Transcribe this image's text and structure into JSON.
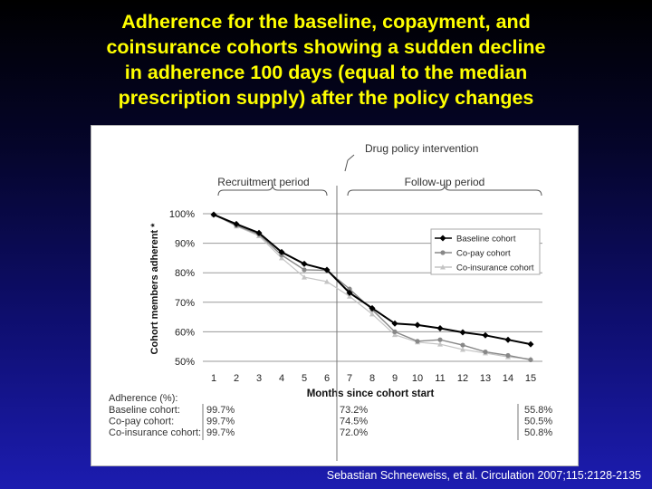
{
  "slide": {
    "title_lines": [
      "Adherence for the baseline, copayment, and",
      "coinsurance cohorts showing a sudden decline",
      "in adherence 100 days (equal to the median",
      "prescription supply) after the policy changes"
    ],
    "citation": "Sebastian Schneeweiss, et al. Circulation 2007;115:2128-2135",
    "colors": {
      "title": "#ffff00",
      "background_top": "#000000",
      "background_bottom": "#1c1cb0"
    }
  },
  "chart_data": {
    "type": "line",
    "title": "",
    "xlabel": "Months since cohort start",
    "ylabel": "Cohort members adherent *",
    "x": [
      1,
      2,
      3,
      4,
      5,
      6,
      7,
      8,
      9,
      10,
      11,
      12,
      13,
      14,
      15
    ],
    "xticks": [
      "1",
      "2",
      "3",
      "4",
      "5",
      "6",
      "7",
      "8",
      "9",
      "10",
      "11",
      "12",
      "13",
      "14",
      "15"
    ],
    "ylim": [
      50,
      100
    ],
    "yticks": [
      "100%",
      "90%",
      "80%",
      "70%",
      "60%",
      "50%"
    ],
    "yticks_values": [
      100,
      90,
      80,
      70,
      60,
      50
    ],
    "grid": "horizontal",
    "legend_position": "top-right",
    "series": [
      {
        "name": "Baseline cohort",
        "color": "#000000",
        "marker": "diamond",
        "values": [
          99.7,
          96.5,
          93.5,
          87.0,
          83.0,
          81.0,
          73.2,
          68.0,
          62.8,
          62.3,
          61.2,
          59.8,
          58.8,
          57.3,
          55.8
        ]
      },
      {
        "name": "Co-pay cohort",
        "color": "#888888",
        "marker": "circle",
        "values": [
          99.7,
          96.0,
          93.0,
          86.0,
          81.0,
          80.8,
          74.5,
          67.5,
          60.0,
          56.8,
          57.3,
          55.5,
          53.2,
          52.0,
          50.5
        ]
      },
      {
        "name": "Co-insurance cohort",
        "color": "#c4c4c4",
        "marker": "triangle",
        "values": [
          99.7,
          95.8,
          92.5,
          85.0,
          78.5,
          77.0,
          72.0,
          66.0,
          59.0,
          56.5,
          55.8,
          54.0,
          52.8,
          51.5,
          50.8
        ]
      }
    ],
    "annotations": {
      "intervention": "Drug policy intervention",
      "recruitment_period": "Recruitment period",
      "followup_period": "Follow-up period"
    },
    "adherence_table": {
      "header": "Adherence (%):",
      "rows": [
        {
          "label": "Baseline cohort:",
          "month1": "99.7%",
          "month7": "73.2%",
          "month15": "55.8%"
        },
        {
          "label": "Co-pay cohort:",
          "month1": "99.7%",
          "month7": "74.5%",
          "month15": "50.5%"
        },
        {
          "label": "Co-insurance cohort:",
          "month1": "99.7%",
          "month7": "72.0%",
          "month15": "50.8%"
        }
      ]
    }
  }
}
